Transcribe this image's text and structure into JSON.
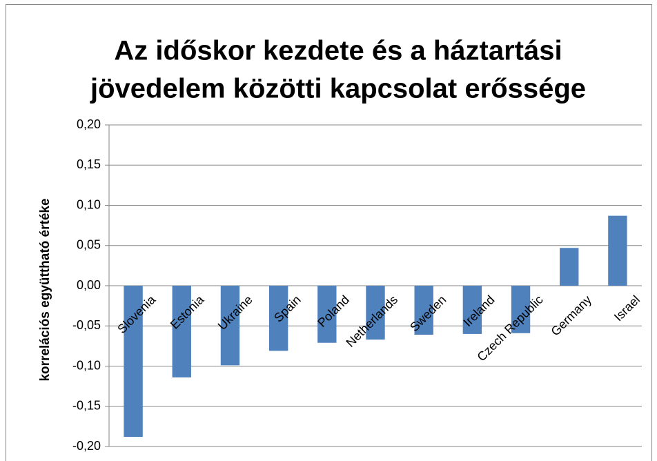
{
  "chart_data": {
    "type": "bar",
    "title": [
      "Az időskor kezdete és a háztartási",
      "jövedelem közötti kapcsolat erőssége"
    ],
    "y_label": "korrelációs együttható értéke",
    "categories": [
      "Slovenia",
      "Estonia",
      "Ukraine",
      "Spain",
      "Poland",
      "Netherlands",
      "Sweden",
      "Ireland",
      "Czech Republic",
      "Germany",
      "Israel"
    ],
    "values": [
      -0.188,
      -0.114,
      -0.099,
      -0.081,
      -0.071,
      -0.067,
      -0.061,
      -0.06,
      -0.059,
      0.047,
      0.087
    ],
    "color": "#4f81bd",
    "ylim": [
      -0.2,
      0.2
    ],
    "yticks": [
      {
        "value": -0.2,
        "label": "-0,20"
      },
      {
        "value": -0.15,
        "label": "-0,15"
      },
      {
        "value": -0.1,
        "label": "-0,10"
      },
      {
        "value": -0.05,
        "label": "-0,05"
      },
      {
        "value": 0,
        "label": "0,00"
      },
      {
        "value": 0.05,
        "label": "0,05"
      },
      {
        "value": 0.1,
        "label": "0,10"
      },
      {
        "value": 0.15,
        "label": "0,15"
      },
      {
        "value": 0.2,
        "label": "0,20"
      }
    ],
    "grid": true
  }
}
